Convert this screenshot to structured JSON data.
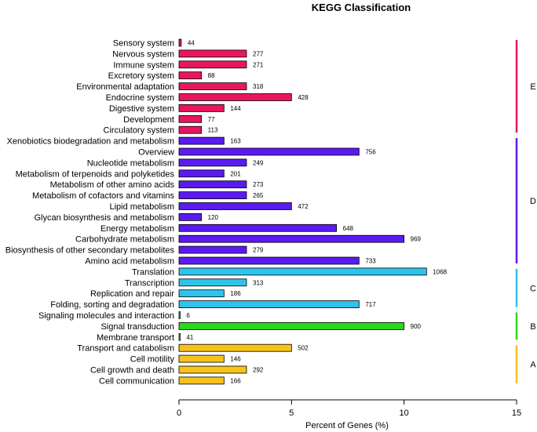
{
  "chart_data": {
    "type": "bar",
    "orientation": "horizontal",
    "title": "KEGG Classification",
    "xlabel": "Percent of Genes (%)",
    "ylabel": "",
    "xlim": [
      0,
      15
    ],
    "xticks": [
      0,
      5,
      10,
      15
    ],
    "grid": false,
    "groups": [
      {
        "name": "E",
        "color": "#E8175D",
        "items": [
          {
            "label": "Sensory system",
            "count": 44,
            "percent": 0.1
          },
          {
            "label": "Nervous system",
            "count": 277,
            "percent": 3
          },
          {
            "label": "Immune system",
            "count": 271,
            "percent": 3
          },
          {
            "label": "Excretory system",
            "count": 88,
            "percent": 1
          },
          {
            "label": "Environmental adaptation",
            "count": 318,
            "percent": 3
          },
          {
            "label": "Endocrine system",
            "count": 428,
            "percent": 5
          },
          {
            "label": "Digestive system",
            "count": 144,
            "percent": 2
          },
          {
            "label": "Development",
            "count": 77,
            "percent": 1
          },
          {
            "label": "Circulatory system",
            "count": 113,
            "percent": 1
          }
        ]
      },
      {
        "name": "D",
        "color": "#5B1AF0",
        "items": [
          {
            "label": "Xenobiotics biodegradation and metabolism",
            "count": 163,
            "percent": 2
          },
          {
            "label": "Overview",
            "count": 756,
            "percent": 8
          },
          {
            "label": "Nucleotide metabolism",
            "count": 249,
            "percent": 3
          },
          {
            "label": "Metabolism of terpenoids and polyketides",
            "count": 201,
            "percent": 2
          },
          {
            "label": "Metabolism of other amino acids",
            "count": 273,
            "percent": 3
          },
          {
            "label": "Metabolism of cofactors and vitamins",
            "count": 265,
            "percent": 3
          },
          {
            "label": "Lipid metabolism",
            "count": 472,
            "percent": 5
          },
          {
            "label": "Glycan biosynthesis and metabolism",
            "count": 120,
            "percent": 1
          },
          {
            "label": "Energy metabolism",
            "count": 648,
            "percent": 7
          },
          {
            "label": "Carbohydrate metabolism",
            "count": 969,
            "percent": 10
          },
          {
            "label": "Biosynthesis of other secondary metabolites",
            "count": 279,
            "percent": 3
          },
          {
            "label": "Amino acid metabolism",
            "count": 733,
            "percent": 8
          }
        ]
      },
      {
        "name": "C",
        "color": "#2EC3EA",
        "items": [
          {
            "label": "Translation",
            "count": 1068,
            "percent": 11
          },
          {
            "label": "Transcription",
            "count": 313,
            "percent": 3
          },
          {
            "label": "Replication and repair",
            "count": 186,
            "percent": 2
          },
          {
            "label": "Folding, sorting and degradation",
            "count": 717,
            "percent": 8
          }
        ]
      },
      {
        "name": "B",
        "color": "#2ED61E",
        "items": [
          {
            "label": "Signaling molecules and interaction",
            "count": 6,
            "percent": 0.05
          },
          {
            "label": "Signal transduction",
            "count": 900,
            "percent": 10
          },
          {
            "label": "Membrane transport",
            "count": 41,
            "percent": 0.05
          }
        ]
      },
      {
        "name": "A",
        "color": "#F6C21C",
        "items": [
          {
            "label": "Transport and catabolism",
            "count": 502,
            "percent": 5
          },
          {
            "label": "Cell motility",
            "count": 146,
            "percent": 2
          },
          {
            "label": "Cell growth and death",
            "count": 292,
            "percent": 3
          },
          {
            "label": "Cell communication",
            "count": 166,
            "percent": 2
          }
        ]
      }
    ]
  }
}
